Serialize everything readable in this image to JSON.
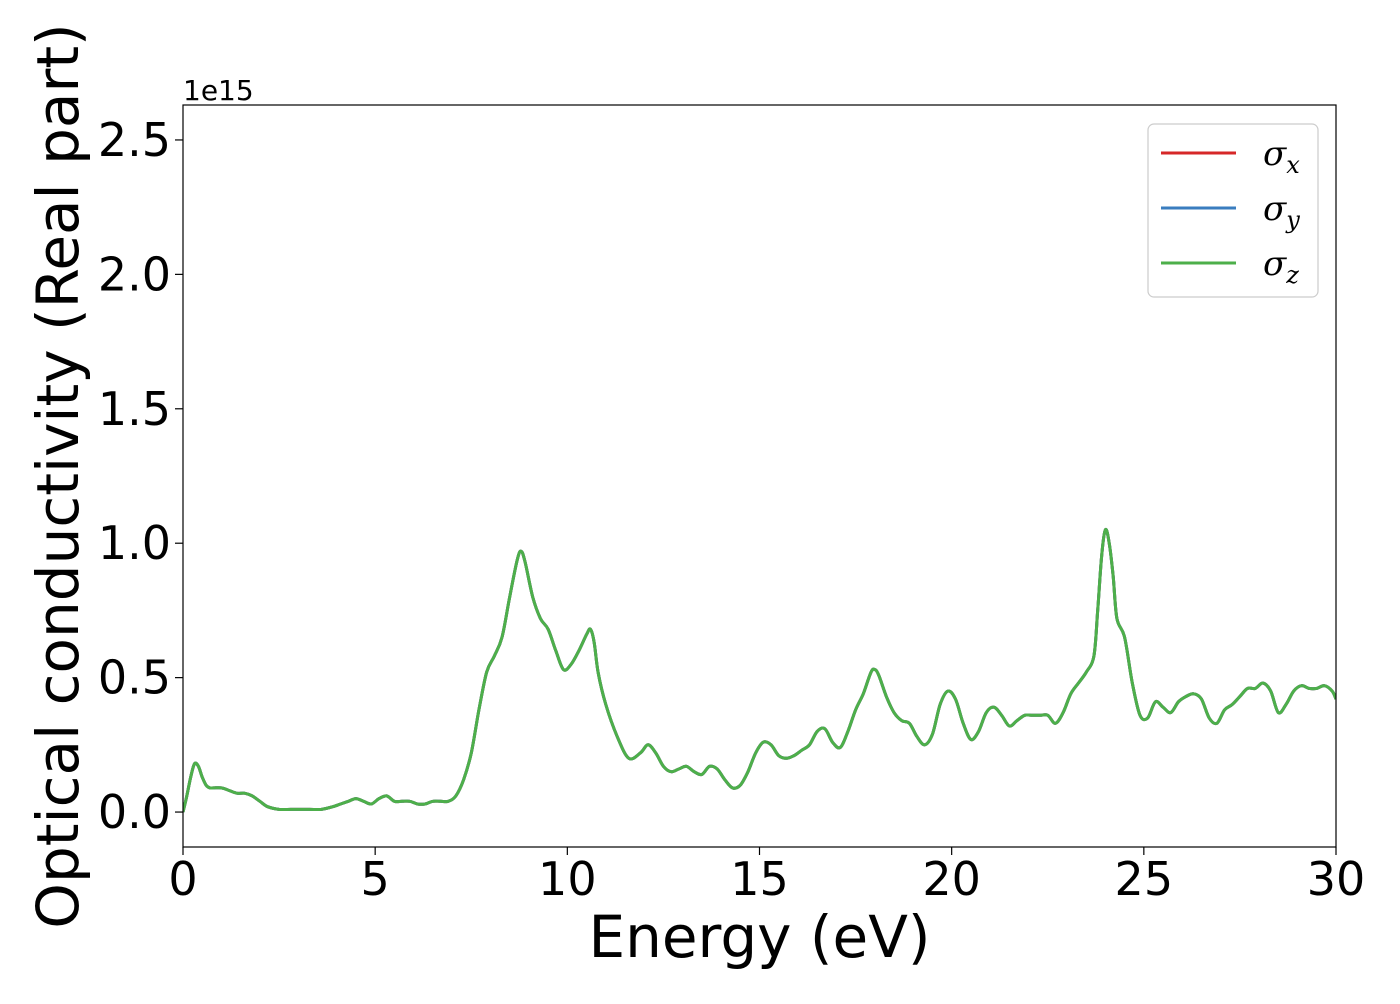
{
  "chart_data": {
    "type": "line",
    "xlabel": "Energy (eV)",
    "ylabel": "Optical conductivity (Real part)",
    "y_offset_label": "1e15",
    "xlim": [
      0,
      30
    ],
    "ylim": [
      -0.13,
      2.63
    ],
    "x_ticks": [
      0,
      5,
      10,
      15,
      20,
      25,
      30
    ],
    "x_tick_labels": [
      "0",
      "5",
      "10",
      "15",
      "20",
      "25",
      "30"
    ],
    "y_ticks": [
      0.0,
      0.5,
      1.0,
      1.5,
      2.0,
      2.5
    ],
    "y_tick_labels": [
      "0.0",
      "0.5",
      "1.0",
      "1.5",
      "2.0",
      "2.5"
    ],
    "grid": false,
    "legend_position": "top-right",
    "series": [
      {
        "name": "σ",
        "subscript": "x",
        "color": "#d62728"
      },
      {
        "name": "σ",
        "subscript": "y",
        "color": "#3a7dbf"
      },
      {
        "name": "σ",
        "subscript": "z",
        "color": "#4daf4a"
      }
    ],
    "curve": {
      "x": [
        0,
        0.1,
        0.2,
        0.3,
        0.4,
        0.5,
        0.6,
        0.7,
        0.8,
        1.0,
        1.2,
        1.4,
        1.6,
        1.8,
        2.0,
        2.2,
        2.5,
        2.8,
        3.0,
        3.3,
        3.6,
        3.9,
        4.1,
        4.3,
        4.5,
        4.7,
        4.9,
        5.1,
        5.3,
        5.5,
        5.7,
        5.9,
        6.1,
        6.3,
        6.5,
        6.7,
        6.9,
        7.1,
        7.3,
        7.5,
        7.7,
        7.9,
        8.1,
        8.3,
        8.5,
        8.7,
        8.8,
        8.9,
        9.1,
        9.3,
        9.5,
        9.7,
        9.9,
        10.1,
        10.3,
        10.5,
        10.6,
        10.7,
        10.8,
        11.0,
        11.3,
        11.6,
        11.9,
        12.1,
        12.3,
        12.5,
        12.7,
        12.9,
        13.1,
        13.3,
        13.5,
        13.7,
        13.9,
        14.1,
        14.3,
        14.5,
        14.7,
        14.9,
        15.1,
        15.3,
        15.5,
        15.7,
        15.9,
        16.1,
        16.3,
        16.5,
        16.7,
        16.9,
        17.1,
        17.3,
        17.5,
        17.7,
        17.9,
        18.0,
        18.1,
        18.3,
        18.5,
        18.7,
        18.9,
        19.1,
        19.3,
        19.5,
        19.7,
        19.9,
        20.1,
        20.3,
        20.5,
        20.7,
        20.9,
        21.1,
        21.3,
        21.5,
        21.7,
        21.9,
        22.1,
        22.3,
        22.5,
        22.7,
        22.9,
        23.1,
        23.3,
        23.5,
        23.7,
        23.8,
        23.9,
        24.0,
        24.1,
        24.2,
        24.3,
        24.5,
        24.7,
        24.9,
        25.1,
        25.3,
        25.5,
        25.7,
        25.9,
        26.1,
        26.3,
        26.5,
        26.7,
        26.9,
        27.1,
        27.3,
        27.5,
        27.7,
        27.9,
        28.1,
        28.3,
        28.5,
        28.7,
        28.9,
        29.1,
        29.3,
        29.5,
        29.7,
        29.9,
        30.0
      ],
      "y": [
        0.0,
        0.06,
        0.13,
        0.18,
        0.17,
        0.13,
        0.1,
        0.09,
        0.09,
        0.09,
        0.08,
        0.07,
        0.07,
        0.06,
        0.04,
        0.02,
        0.01,
        0.01,
        0.01,
        0.01,
        0.01,
        0.02,
        0.03,
        0.04,
        0.05,
        0.04,
        0.03,
        0.05,
        0.06,
        0.04,
        0.04,
        0.04,
        0.03,
        0.03,
        0.04,
        0.04,
        0.04,
        0.06,
        0.12,
        0.22,
        0.38,
        0.52,
        0.58,
        0.65,
        0.8,
        0.94,
        0.97,
        0.93,
        0.8,
        0.72,
        0.68,
        0.6,
        0.53,
        0.55,
        0.6,
        0.66,
        0.68,
        0.63,
        0.52,
        0.4,
        0.28,
        0.2,
        0.22,
        0.25,
        0.22,
        0.17,
        0.15,
        0.16,
        0.17,
        0.15,
        0.14,
        0.17,
        0.16,
        0.12,
        0.09,
        0.1,
        0.15,
        0.22,
        0.26,
        0.25,
        0.21,
        0.2,
        0.21,
        0.23,
        0.25,
        0.3,
        0.31,
        0.26,
        0.24,
        0.3,
        0.38,
        0.44,
        0.52,
        0.53,
        0.51,
        0.43,
        0.37,
        0.34,
        0.33,
        0.28,
        0.25,
        0.29,
        0.4,
        0.45,
        0.42,
        0.33,
        0.27,
        0.3,
        0.37,
        0.39,
        0.36,
        0.32,
        0.34,
        0.36,
        0.36,
        0.36,
        0.36,
        0.33,
        0.37,
        0.44,
        0.48,
        0.52,
        0.58,
        0.75,
        0.95,
        1.05,
        1.0,
        0.88,
        0.72,
        0.65,
        0.48,
        0.36,
        0.35,
        0.41,
        0.39,
        0.37,
        0.41,
        0.43,
        0.44,
        0.42,
        0.35,
        0.33,
        0.38,
        0.4,
        0.43,
        0.46,
        0.46,
        0.48,
        0.45,
        0.37,
        0.4,
        0.45,
        0.47,
        0.46,
        0.46,
        0.47,
        0.45,
        0.42
      ]
    }
  }
}
